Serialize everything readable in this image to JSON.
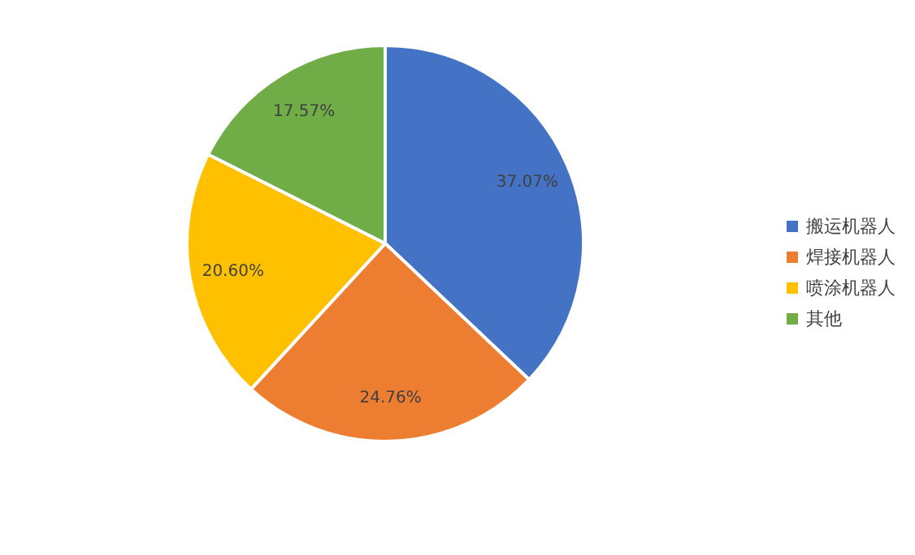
{
  "chart_data": {
    "type": "pie",
    "categories": [
      "搬运机器人",
      "焊接机器人",
      "喷涂机器人",
      "其他"
    ],
    "values": [
      37.07,
      24.76,
      20.6,
      17.57
    ],
    "colors": [
      "#4472c4",
      "#ed7d31",
      "#ffc000",
      "#70ad47"
    ],
    "value_labels": [
      "37.07%",
      "24.76%",
      "20.60%",
      "17.57%"
    ],
    "legend": "right"
  }
}
